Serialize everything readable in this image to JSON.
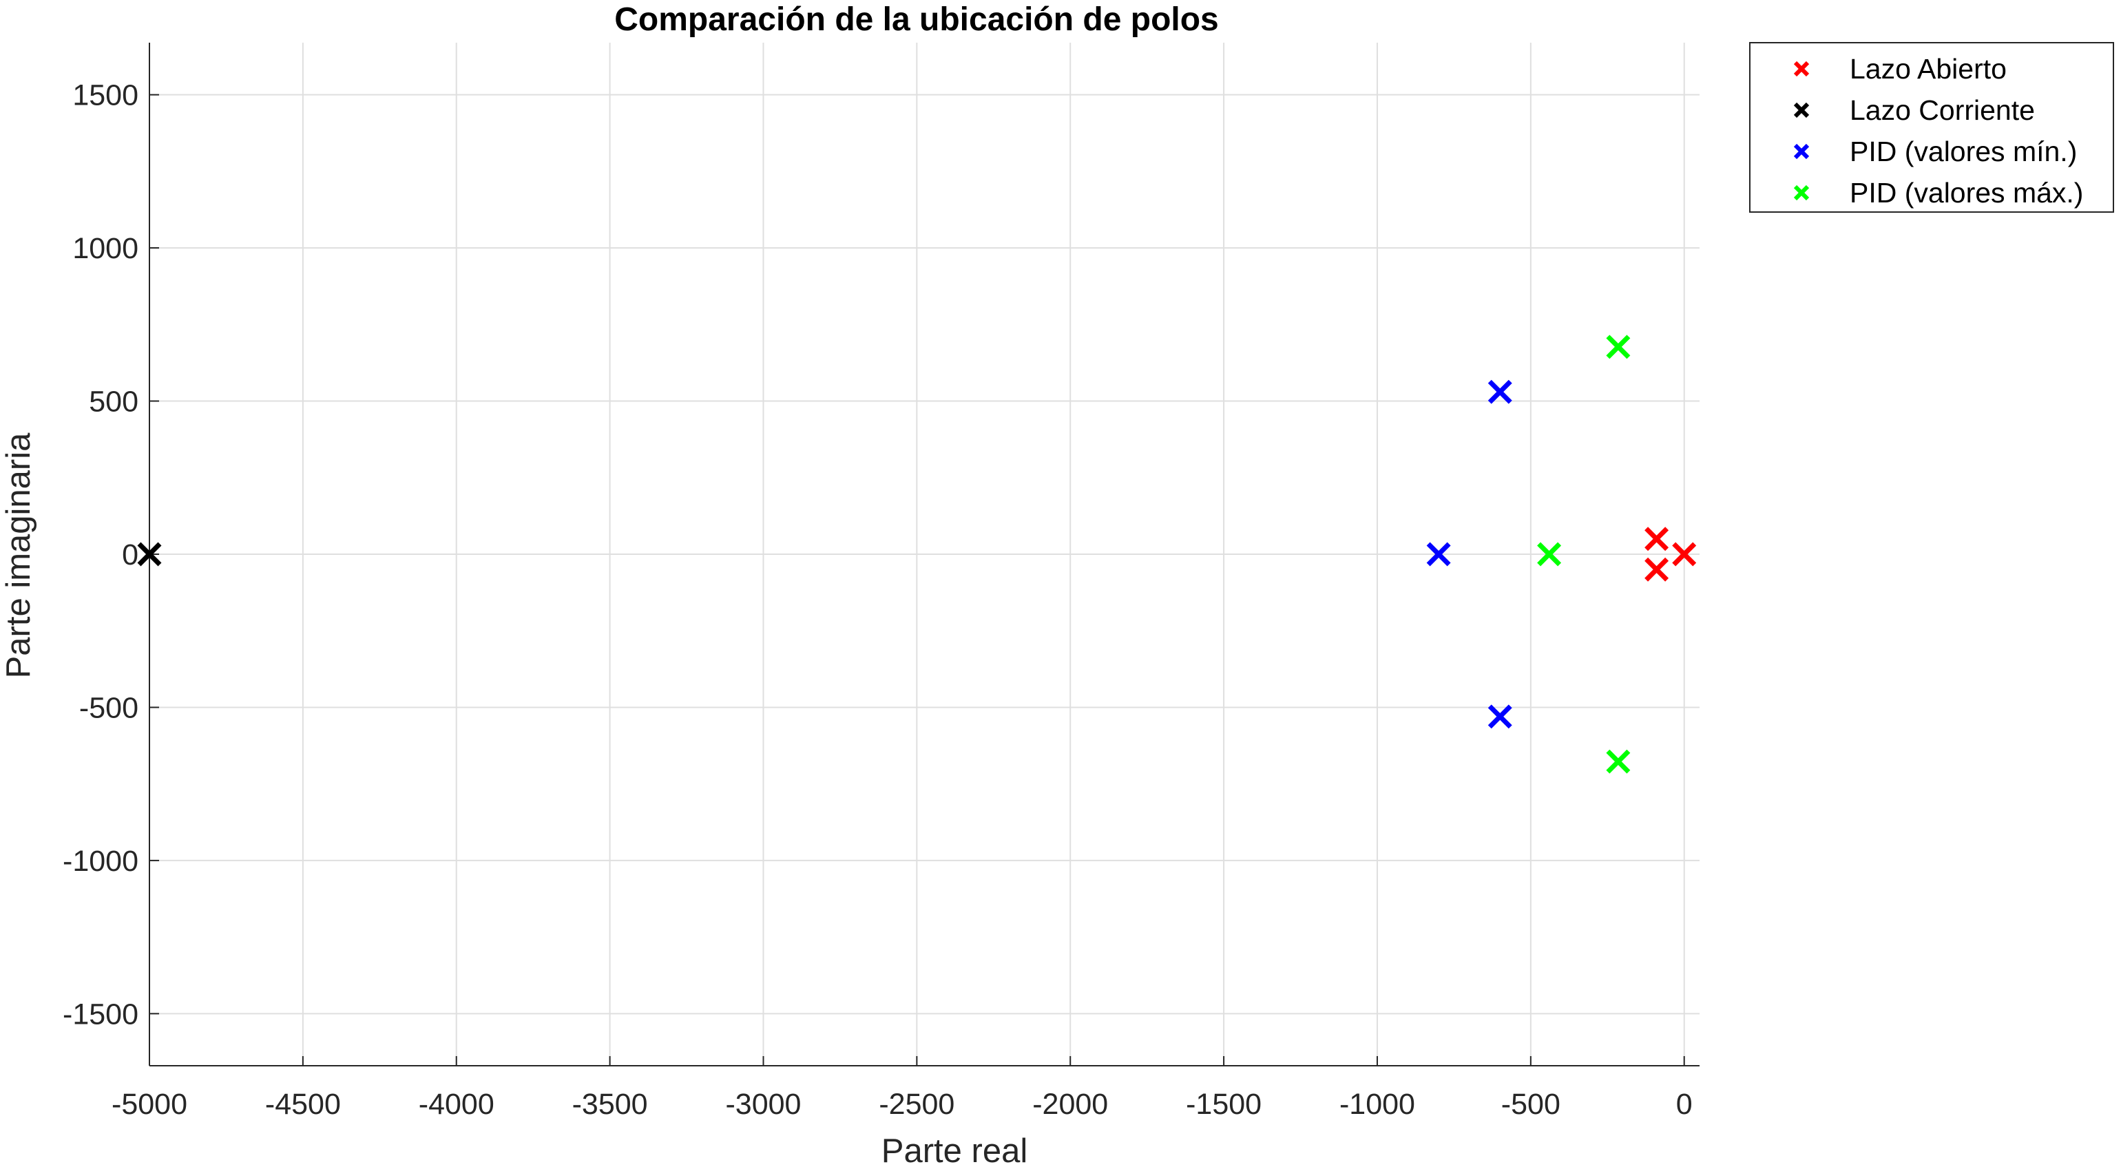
{
  "chart_data": {
    "type": "scatter",
    "title": "Comparación de la ubicación de polos",
    "xlabel": "Parte real",
    "ylabel": "Parte imaginaria",
    "xlim": [
      -5000,
      50
    ],
    "ylim": [
      -1670,
      1670
    ],
    "xticks": [
      -5000,
      -4500,
      -4000,
      -3500,
      -3000,
      -2500,
      -2000,
      -1500,
      -1000,
      -500,
      0
    ],
    "yticks": [
      -1500,
      -1000,
      -500,
      0,
      500,
      1000,
      1500
    ],
    "grid": true,
    "legend_position": "outside-top-right",
    "marker": "x",
    "series": [
      {
        "name": "Lazo Abierto",
        "color": "#ff0000",
        "points": [
          [
            0,
            0
          ],
          [
            -90,
            50
          ],
          [
            -90,
            -50
          ]
        ]
      },
      {
        "name": "Lazo Corriente",
        "color": "#000000",
        "points": [
          [
            -5000,
            0
          ]
        ]
      },
      {
        "name": "PID (valores mín.)",
        "color": "#0000ff",
        "points": [
          [
            -800,
            0
          ],
          [
            -600,
            530
          ],
          [
            -600,
            -530
          ]
        ]
      },
      {
        "name": "PID (valores máx.)",
        "color": "#00ff00",
        "points": [
          [
            -440,
            0
          ],
          [
            -215,
            677
          ],
          [
            -215,
            -677
          ]
        ]
      }
    ]
  }
}
